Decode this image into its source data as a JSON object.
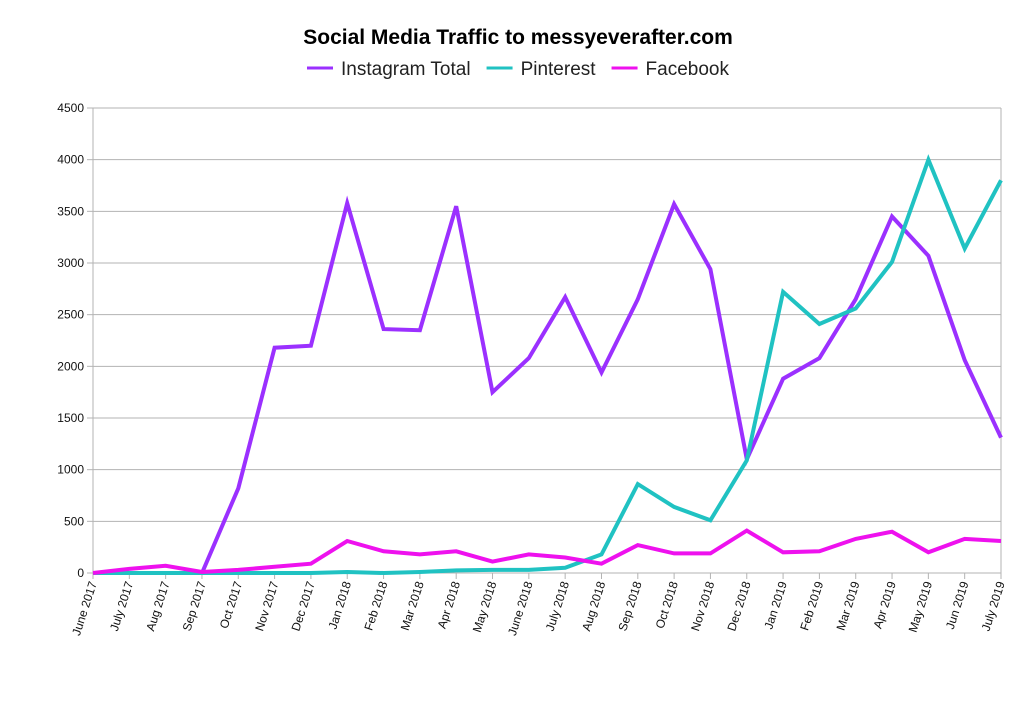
{
  "chart_data": {
    "type": "line",
    "title": "Social Media Traffic to messyeverafter.com",
    "xlabel": "",
    "ylabel": "",
    "ylim": [
      0,
      4500
    ],
    "yticks": [
      0,
      500,
      1000,
      1500,
      2000,
      2500,
      3000,
      3500,
      4000,
      4500
    ],
    "grid": true,
    "legend_position": "top",
    "categories": [
      "June 2017",
      "July 2017",
      "Aug 2017",
      "Sep 2017",
      "Oct 2017",
      "Nov 2017",
      "Dec 2017",
      "Jan 2018",
      "Feb 2018",
      "Mar 2018",
      "Apr 2018",
      "May 2018",
      "June 2018",
      "July 2018",
      "Aug 2018",
      "Sep 2018",
      "Oct 2018",
      "Nov 2018",
      "Dec 2018",
      "Jan 2019",
      "Feb 2019",
      "Mar 2019",
      "Apr 2019",
      "May 2019",
      "Jun 2019",
      "July 2019"
    ],
    "series": [
      {
        "name": "Instagram Total",
        "color": "#9b30ff",
        "values": [
          0,
          0,
          0,
          0,
          820,
          2180,
          2200,
          3580,
          2360,
          2350,
          3550,
          1750,
          2080,
          2670,
          1940,
          2650,
          3570,
          2940,
          1100,
          1880,
          2080,
          2650,
          3450,
          3070,
          2060,
          1310
        ]
      },
      {
        "name": "Pinterest",
        "color": "#20c2c2",
        "values": [
          0,
          0,
          0,
          0,
          0,
          0,
          0,
          10,
          0,
          10,
          25,
          30,
          30,
          50,
          180,
          860,
          640,
          510,
          1090,
          2720,
          2410,
          2560,
          3010,
          4000,
          3140,
          3800
        ]
      },
      {
        "name": "Facebook",
        "color": "#ee11ee",
        "values": [
          0,
          40,
          70,
          10,
          30,
          60,
          90,
          310,
          210,
          180,
          210,
          110,
          180,
          150,
          90,
          270,
          190,
          190,
          410,
          200,
          210,
          330,
          400,
          200,
          330,
          310
        ]
      }
    ]
  }
}
